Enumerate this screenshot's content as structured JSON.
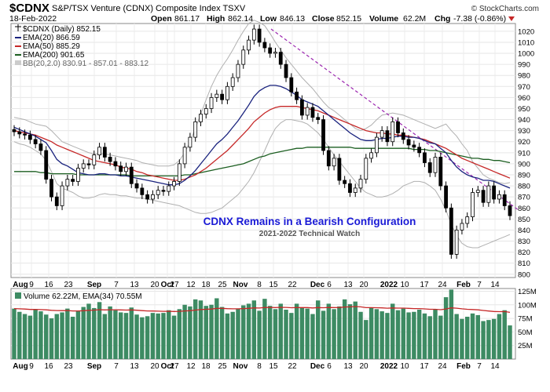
{
  "header": {
    "symbol": "$CDNX",
    "name": "S&P/TSX Venture (CDNX) Composite Index  TSXV",
    "date": "18-Feb-2022",
    "open_label": "Open",
    "open": "861.17",
    "high_label": "High",
    "high": "862.14",
    "low_label": "Low",
    "low": "846.13",
    "close_label": "Close",
    "close": "852.15",
    "volume_label": "Volume",
    "volume": "62.2M",
    "chg_label": "Chg",
    "chg": "-7.38 (-0.86%)",
    "watermark": "© StockCharts.com"
  },
  "legend": [
    {
      "text": "$CDNX (Daily) 852.15",
      "color": "#000000"
    },
    {
      "text": "EMA(20) 866.59",
      "color": "#1a237e"
    },
    {
      "text": "EMA(50) 885.29",
      "color": "#c62828"
    },
    {
      "text": "EMA(200) 901.65",
      "color": "#1b5e20"
    },
    {
      "text": "BB(20,2.0) 830.91 - 857.01 - 883.12",
      "color": "#888888"
    }
  ],
  "annotation": {
    "title": "CDNX Remains in a Bearish Configuration",
    "subtitle": "2021-2022 Technical Watch"
  },
  "volume_legend": "Volume 62.22M, EMA(34) 70.55M",
  "colors": {
    "candle": "#000000",
    "ema20": "#1a237e",
    "ema50": "#c62828",
    "ema200": "#1b5e20",
    "bb": "#b0b0b0",
    "trendline": "#9c27b0",
    "volume_bar": "#3d8b63",
    "volume_ema": "#c62828",
    "annotation": "#1a1ad6"
  },
  "chart_data": {
    "type": "candlestick",
    "title": "$CDNX S&P/TSX Venture (CDNX) Composite Index",
    "x_tick_labels": [
      "Aug",
      "9",
      "16",
      "23",
      "Sep",
      "7",
      "13",
      "20",
      "27",
      "Oct",
      "12",
      "18",
      "25",
      "Nov",
      "8",
      "15",
      "22",
      "Dec",
      "6",
      "13",
      "20",
      "2022",
      "10",
      "17",
      "24",
      "Feb",
      "7",
      "14"
    ],
    "y_tick_labels": [
      "800",
      "810",
      "820",
      "830",
      "840",
      "850",
      "860",
      "870",
      "880",
      "890",
      "900",
      "910",
      "920",
      "930",
      "940",
      "950",
      "960",
      "970",
      "980",
      "990",
      "1000",
      "1010",
      "1020"
    ],
    "ylim": [
      800,
      1025
    ],
    "volume_tick_labels": [
      "25M",
      "50M",
      "75M",
      "100M",
      "125M"
    ],
    "volume_ylim": [
      0,
      130
    ],
    "grid": true,
    "close": [
      929,
      927,
      926,
      922,
      918,
      912,
      886,
      870,
      862,
      880,
      886,
      884,
      896,
      900,
      899,
      908,
      915,
      906,
      902,
      898,
      893,
      897,
      882,
      878,
      872,
      868,
      872,
      876,
      875,
      880,
      884,
      900,
      915,
      924,
      938,
      945,
      950,
      960,
      963,
      958,
      970,
      978,
      990,
      1003,
      1012,
      1022,
      1010,
      1005,
      1000,
      1001,
      990,
      978,
      965,
      958,
      944,
      951,
      942,
      940,
      912,
      898,
      905,
      885,
      882,
      874,
      878,
      886,
      905,
      910,
      924,
      930,
      920,
      938,
      928,
      922,
      917,
      915,
      910,
      901,
      892,
      906,
      880,
      860,
      818,
      840,
      846,
      852,
      874,
      876,
      865,
      880,
      868,
      872,
      862,
      853
    ],
    "volume_M": [
      93,
      87,
      83,
      80,
      91,
      88,
      82,
      75,
      83,
      86,
      93,
      78,
      88,
      96,
      102,
      94,
      105,
      83,
      97,
      90,
      86,
      85,
      95,
      82,
      77,
      79,
      85,
      84,
      85,
      90,
      80,
      92,
      100,
      97,
      110,
      108,
      98,
      100,
      112,
      96,
      84,
      87,
      93,
      99,
      102,
      108,
      89,
      111,
      98,
      92,
      102,
      91,
      85,
      102,
      95,
      93,
      83,
      108,
      89,
      102,
      92,
      97,
      110,
      101,
      106,
      87,
      72,
      95,
      92,
      88,
      85,
      102,
      90,
      93,
      86,
      87,
      91,
      84,
      79,
      92,
      80,
      114,
      128,
      83,
      74,
      78,
      84,
      81,
      70,
      72,
      74,
      83,
      90,
      62
    ],
    "ema20": [
      933,
      931,
      929,
      927,
      925,
      922,
      919,
      912,
      904,
      900,
      898,
      895,
      892,
      891,
      890,
      890,
      891,
      891,
      890,
      890,
      889,
      889,
      888,
      887,
      886,
      885,
      884,
      883,
      882,
      881,
      881,
      882,
      885,
      889,
      894,
      900,
      906,
      912,
      918,
      922,
      927,
      933,
      939,
      946,
      953,
      961,
      966,
      969,
      971,
      971,
      970,
      968,
      965,
      962,
      958,
      956,
      954,
      952,
      948,
      944,
      940,
      936,
      932,
      928,
      925,
      922,
      921,
      921,
      922,
      923,
      923,
      924,
      925,
      925,
      924,
      924,
      923,
      921,
      919,
      918,
      914,
      910,
      903,
      897,
      893,
      890,
      888,
      887,
      885,
      885,
      884,
      882,
      880,
      878
    ],
    "ema50": [
      930,
      929,
      928,
      927,
      926,
      924,
      922,
      920,
      917,
      915,
      913,
      911,
      909,
      907,
      905,
      903,
      902,
      901,
      900,
      899,
      897,
      896,
      895,
      893,
      892,
      890,
      889,
      888,
      887,
      886,
      885,
      885,
      886,
      888,
      890,
      893,
      896,
      900,
      904,
      908,
      912,
      917,
      922,
      927,
      932,
      938,
      942,
      946,
      949,
      951,
      952,
      952,
      952,
      952,
      951,
      950,
      949,
      948,
      946,
      944,
      942,
      940,
      938,
      936,
      934,
      932,
      930,
      929,
      928,
      928,
      927,
      927,
      926,
      926,
      925,
      924,
      923,
      922,
      920,
      918,
      916,
      914,
      911,
      908,
      905,
      903,
      901,
      899,
      897,
      895,
      893,
      891,
      889,
      887
    ],
    "ema200": [
      893,
      893,
      893,
      893,
      893,
      892,
      892,
      891,
      891,
      891,
      891,
      891,
      890,
      890,
      890,
      890,
      890,
      890,
      890,
      890,
      890,
      890,
      889,
      889,
      889,
      889,
      889,
      889,
      889,
      889,
      889,
      889,
      890,
      890,
      891,
      892,
      893,
      894,
      895,
      896,
      897,
      898,
      899,
      900,
      902,
      904,
      906,
      907,
      909,
      910,
      911,
      912,
      913,
      914,
      914,
      915,
      915,
      915,
      915,
      915,
      915,
      915,
      915,
      915,
      914,
      914,
      914,
      914,
      914,
      914,
      914,
      914,
      914,
      914,
      914,
      913,
      913,
      913,
      912,
      912,
      911,
      910,
      909,
      908,
      907,
      906,
      905,
      905,
      904,
      904,
      903,
      903,
      902,
      901
    ],
    "bb_upper": [
      942,
      941,
      940,
      938,
      936,
      935,
      934,
      930,
      925,
      920,
      918,
      916,
      914,
      912,
      910,
      909,
      909,
      909,
      908,
      907,
      906,
      905,
      904,
      903,
      901,
      900,
      899,
      898,
      898,
      898,
      899,
      903,
      910,
      920,
      932,
      945,
      958,
      970,
      980,
      988,
      995,
      1003,
      1012,
      1020,
      1027,
      1030,
      1028,
      1025,
      1018,
      1010,
      1003,
      996,
      990,
      984,
      978,
      973,
      968,
      962,
      956,
      951,
      948,
      944,
      940,
      936,
      932,
      930,
      932,
      935,
      940,
      944,
      945,
      946,
      945,
      944,
      942,
      940,
      938,
      936,
      934,
      932,
      934,
      936,
      930,
      925,
      918,
      912,
      902,
      896,
      890,
      887,
      885,
      883,
      882,
      883
    ],
    "bb_lower": [
      920,
      918,
      917,
      915,
      912,
      909,
      903,
      893,
      882,
      878,
      876,
      874,
      871,
      869,
      869,
      870,
      872,
      873,
      872,
      872,
      871,
      871,
      870,
      869,
      869,
      868,
      867,
      866,
      865,
      864,
      863,
      862,
      860,
      858,
      856,
      855,
      855,
      856,
      858,
      860,
      864,
      868,
      872,
      878,
      884,
      892,
      902,
      912,
      923,
      932,
      937,
      940,
      940,
      939,
      938,
      936,
      932,
      928,
      922,
      915,
      908,
      902,
      896,
      890,
      884,
      878,
      874,
      872,
      870,
      870,
      871,
      873,
      876,
      880,
      882,
      884,
      884,
      883,
      880,
      876,
      868,
      858,
      845,
      835,
      828,
      825,
      824,
      824,
      826,
      828,
      830,
      832,
      834,
      836
    ]
  }
}
